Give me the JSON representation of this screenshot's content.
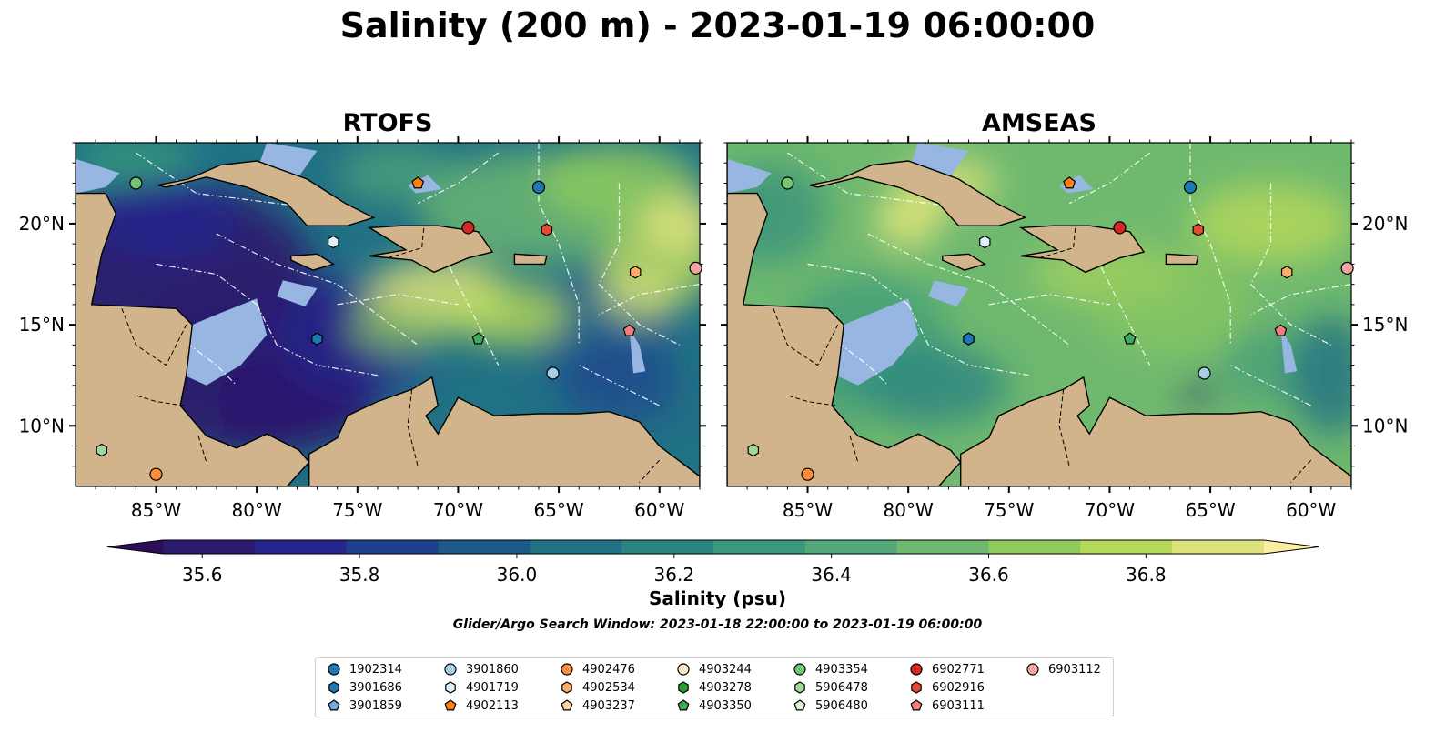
{
  "title": "Salinity (200 m) - 2023-01-19 06:00:00",
  "panels": [
    {
      "title": "RTOFS",
      "model": "rtofs"
    },
    {
      "title": "AMSEAS",
      "model": "amseas"
    }
  ],
  "axes": {
    "lon_ticks": [
      "85°W",
      "80°W",
      "75°W",
      "70°W",
      "65°W",
      "60°W"
    ],
    "lat_ticks": [
      "20°N",
      "15°N",
      "10°N"
    ],
    "lon_range": [
      -89,
      -58
    ],
    "lat_range": [
      7,
      24
    ]
  },
  "colorbar": {
    "label": "Salinity (psu)",
    "ticks": [
      "35.6",
      "35.8",
      "36.0",
      "36.2",
      "36.4",
      "36.6",
      "36.8"
    ],
    "range": [
      35.55,
      36.95
    ],
    "colors": [
      "#2c1a6e",
      "#26268f",
      "#1f3f8f",
      "#1d5a8a",
      "#217185",
      "#2a8581",
      "#3a987c",
      "#52a878",
      "#6fb96f",
      "#8fca5e",
      "#b6d95a",
      "#dde37a"
    ],
    "extend_low": "#2b0f58",
    "extend_high": "#fbeea0"
  },
  "search_window": "Glider/Argo Search Window: 2023-01-18 22:00:00 to 2023-01-19 06:00:00",
  "legend": [
    {
      "id": "1902314",
      "marker": "circle",
      "color": "#1f77b4"
    },
    {
      "id": "3901686",
      "marker": "hexagon",
      "color": "#1f77b4"
    },
    {
      "id": "3901859",
      "marker": "pentagon",
      "color": "#6fa8dc"
    },
    {
      "id": "3901860",
      "marker": "circle",
      "color": "#a6cee3"
    },
    {
      "id": "4901719",
      "marker": "hexagon",
      "color": "#e0f0fb"
    },
    {
      "id": "4902113",
      "marker": "pentagon",
      "color": "#ff7f0e"
    },
    {
      "id": "4902476",
      "marker": "circle",
      "color": "#fd8d3c"
    },
    {
      "id": "4902534",
      "marker": "hexagon",
      "color": "#fdae6b"
    },
    {
      "id": "4903237",
      "marker": "pentagon",
      "color": "#fdd0a2"
    },
    {
      "id": "4903244",
      "marker": "circle",
      "color": "#fde6ce"
    },
    {
      "id": "4903278",
      "marker": "hexagon",
      "color": "#2ca02c"
    },
    {
      "id": "4903350",
      "marker": "pentagon",
      "color": "#41ab5d"
    },
    {
      "id": "4903354",
      "marker": "circle",
      "color": "#74c476"
    },
    {
      "id": "5906478",
      "marker": "hexagon",
      "color": "#a1d99b"
    },
    {
      "id": "5906480",
      "marker": "pentagon",
      "color": "#d9f0d3"
    },
    {
      "id": "6902771",
      "marker": "circle",
      "color": "#d62728"
    },
    {
      "id": "6902916",
      "marker": "hexagon",
      "color": "#e34a33"
    },
    {
      "id": "6903111",
      "marker": "pentagon",
      "color": "#f08080"
    },
    {
      "id": "6903112",
      "marker": "circle",
      "color": "#f4a3a3"
    }
  ],
  "floats": [
    {
      "id": "4903354",
      "lon": -86.0,
      "lat": 22.0
    },
    {
      "id": "4902113",
      "lon": -72.0,
      "lat": 22.0
    },
    {
      "id": "1902314",
      "lon": -66.0,
      "lat": 21.8
    },
    {
      "id": "6902771",
      "lon": -69.5,
      "lat": 19.8
    },
    {
      "id": "6902916",
      "lon": -65.6,
      "lat": 19.7
    },
    {
      "id": "4901719",
      "lon": -76.2,
      "lat": 19.1
    },
    {
      "id": "4902534",
      "lon": -61.2,
      "lat": 17.6
    },
    {
      "id": "6903112",
      "lon": -58.2,
      "lat": 17.8
    },
    {
      "id": "6903111",
      "lon": -61.5,
      "lat": 14.7
    },
    {
      "id": "3901686",
      "lon": -77.0,
      "lat": 14.3
    },
    {
      "id": "4903350",
      "lon": -69.0,
      "lat": 14.3
    },
    {
      "id": "3901860",
      "lon": -65.3,
      "lat": 12.6
    },
    {
      "id": "5906478",
      "lon": -87.7,
      "lat": 8.8
    },
    {
      "id": "4902476",
      "lon": -85.0,
      "lat": 7.6
    }
  ],
  "colors": {
    "land": "#d1b48c",
    "shallow_water": "#97b6e2",
    "eez_lines": "#ffffff"
  }
}
